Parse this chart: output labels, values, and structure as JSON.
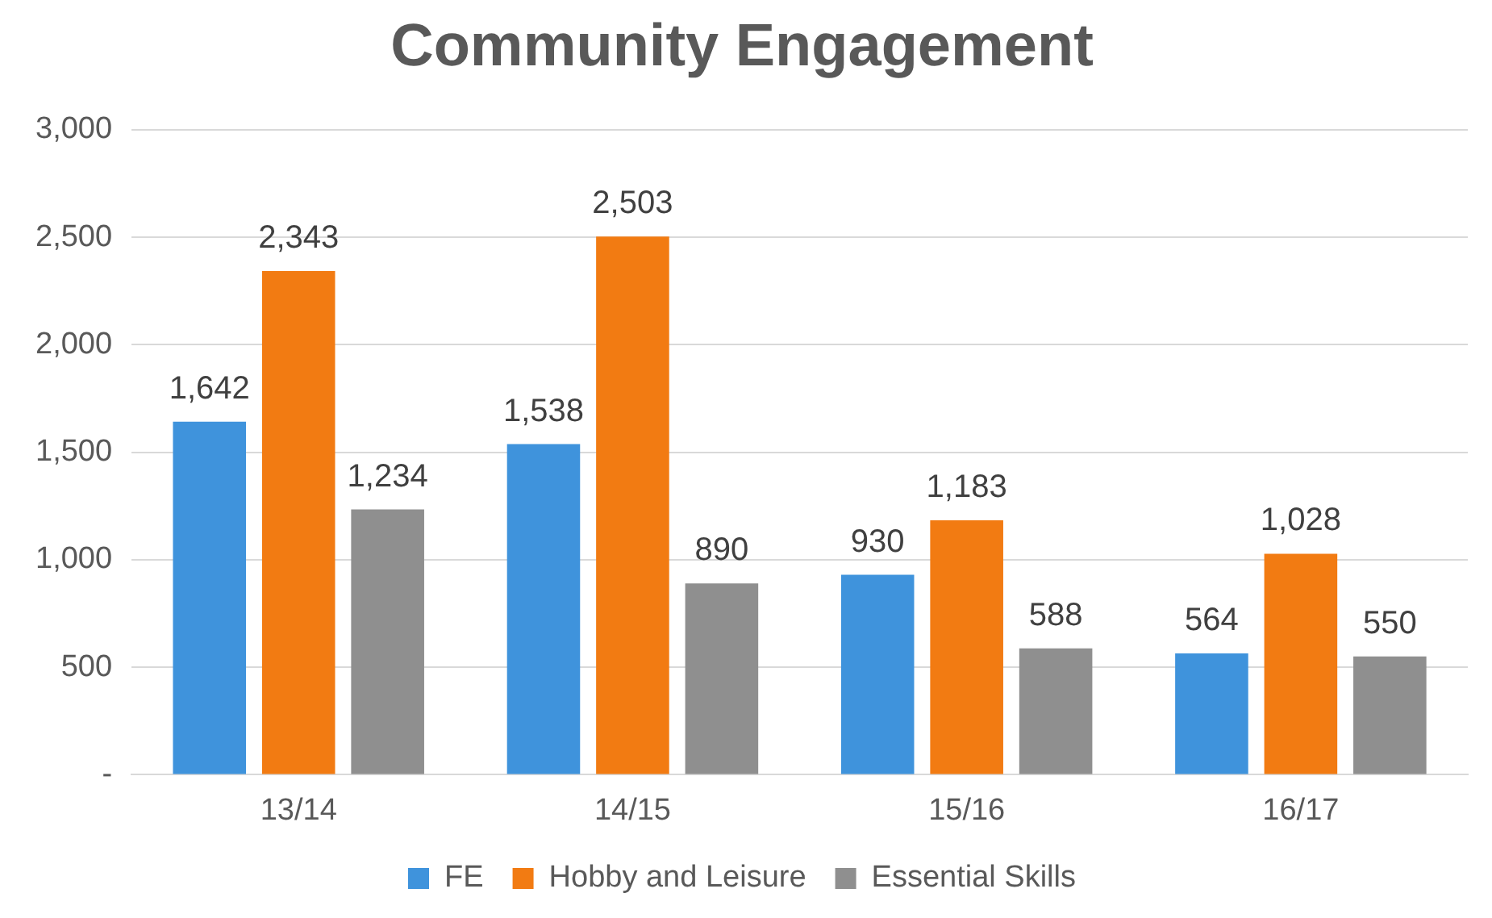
{
  "chart_data": {
    "type": "bar",
    "title": "Community Engagement",
    "categories": [
      "13/14",
      "14/15",
      "15/16",
      "16/17"
    ],
    "series": [
      {
        "name": "FE",
        "color": "#3f93dc",
        "values": [
          1642,
          1538,
          930,
          564
        ],
        "value_labels": [
          "1,642",
          "1,538",
          "930",
          "564"
        ]
      },
      {
        "name": "Hobby and Leisure",
        "color": "#f27b12",
        "values": [
          2343,
          2503,
          1183,
          1028
        ],
        "value_labels": [
          "2,343",
          "2,503",
          "1,183",
          "1,028"
        ]
      },
      {
        "name": "Essential Skills",
        "color": "#8f8f8f",
        "values": [
          1234,
          890,
          588,
          550
        ],
        "value_labels": [
          "1,234",
          "890",
          "588",
          "550"
        ]
      }
    ],
    "ylim": [
      0,
      3000
    ],
    "yticks": [
      {
        "value": 0,
        "label": "-"
      },
      {
        "value": 500,
        "label": "500"
      },
      {
        "value": 1000,
        "label": "1,000"
      },
      {
        "value": 1500,
        "label": "1,500"
      },
      {
        "value": 2000,
        "label": "2,000"
      },
      {
        "value": 2500,
        "label": "2,500"
      },
      {
        "value": 3000,
        "label": "3,000"
      }
    ],
    "grid": "y",
    "legend": "bottom"
  }
}
